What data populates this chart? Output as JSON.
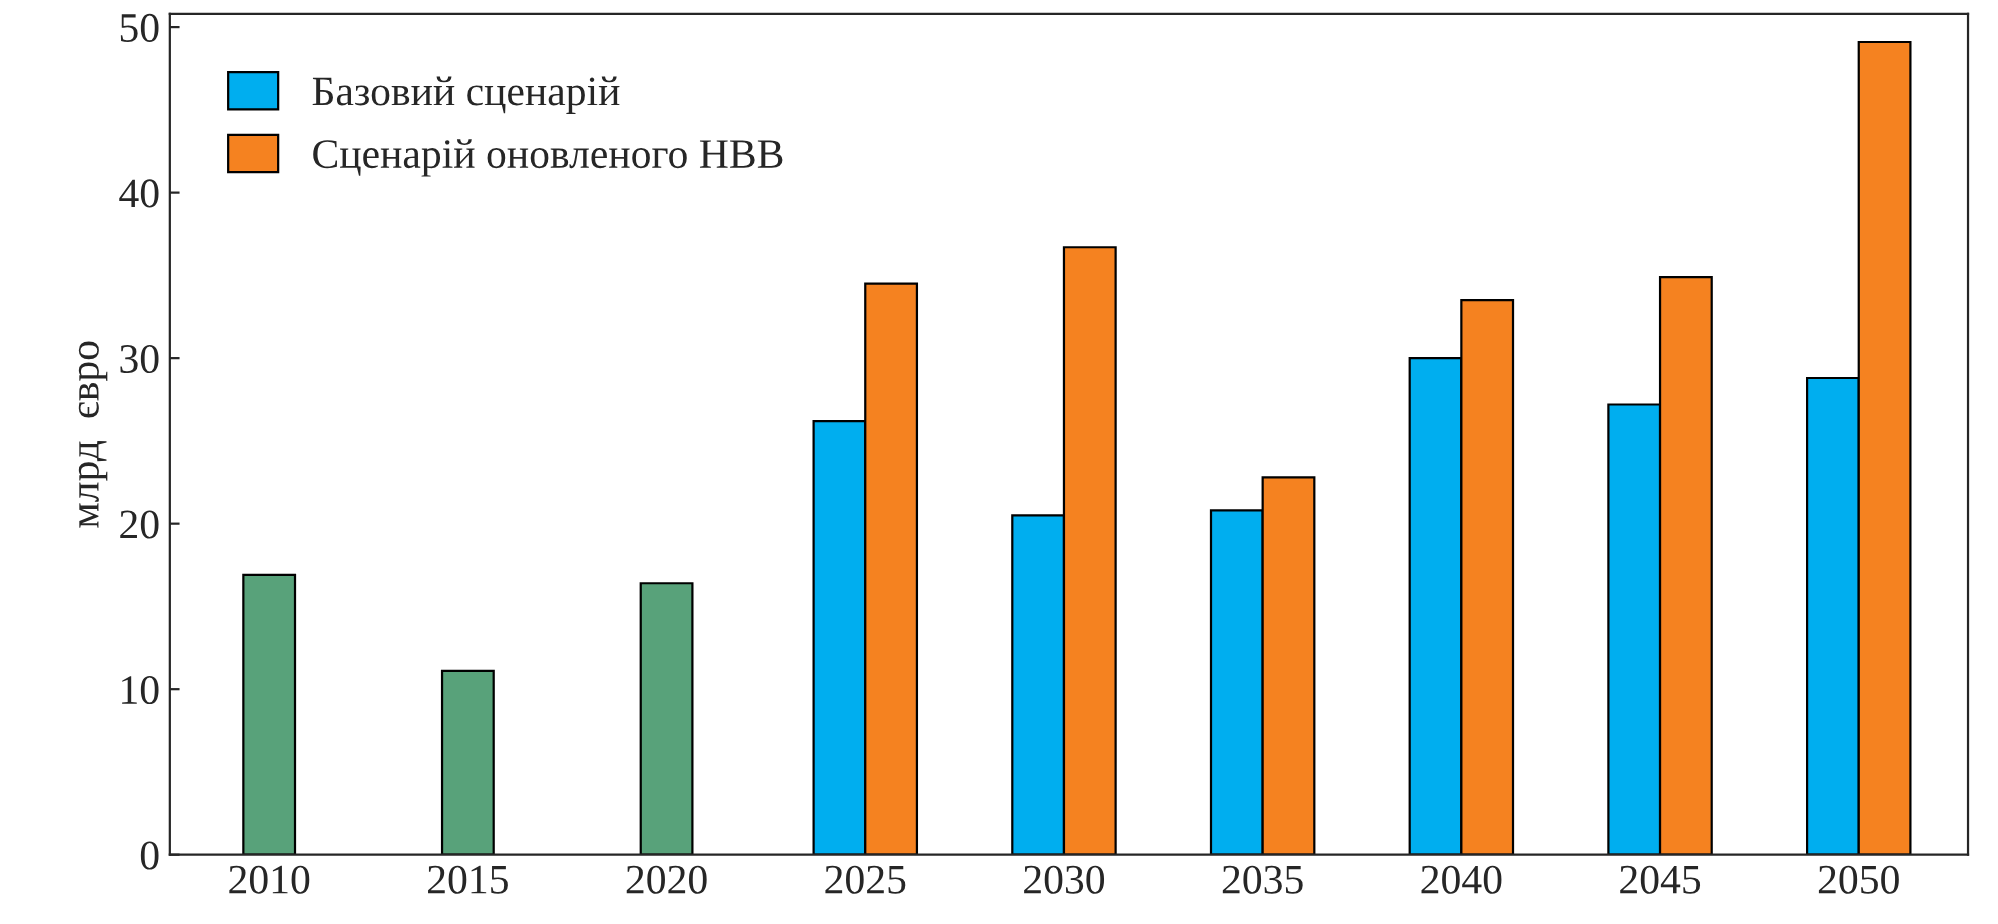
{
  "chart_data": {
    "type": "bar",
    "ylabel": "млрд  євро",
    "categories": [
      "2010",
      "2015",
      "2020",
      "2025",
      "2030",
      "2035",
      "2040",
      "2045",
      "2050"
    ],
    "series": [
      {
        "color": "#58a27a",
        "values": [
          16.9,
          11.1,
          16.4,
          null,
          null,
          null,
          null,
          null,
          null
        ]
      },
      {
        "name": "Базовий сценарій",
        "color": "#00aeef",
        "values": [
          null,
          null,
          null,
          26.2,
          20.5,
          20.8,
          30.0,
          27.2,
          28.8
        ]
      },
      {
        "name": "Сценарій оновленого НВВ",
        "color": "#f58220",
        "values": [
          null,
          null,
          null,
          34.5,
          36.7,
          22.8,
          33.5,
          34.9,
          49.1
        ]
      }
    ],
    "ylim": [
      0,
      50.8
    ],
    "yticks": [
      0,
      10,
      20,
      30,
      40,
      50
    ],
    "grid": false,
    "legend": "top left"
  }
}
